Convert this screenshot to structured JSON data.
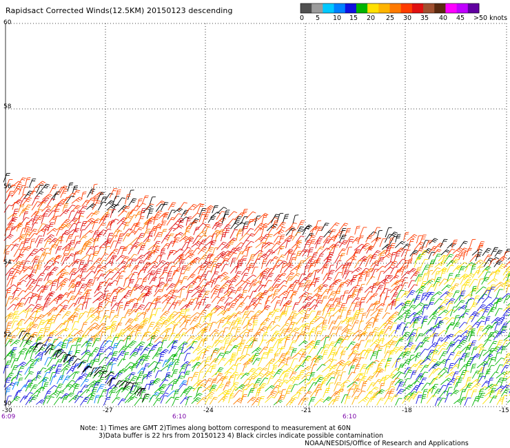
{
  "title": "Rapidsact Corrected Winds(12.5KM) 20150123 descending",
  "legend": {
    "bins": [
      {
        "color": "#505050"
      },
      {
        "color": "#9c9c9c"
      },
      {
        "color": "#00c8ff"
      },
      {
        "color": "#0080ff"
      },
      {
        "color": "#1010e0"
      },
      {
        "color": "#00b400"
      },
      {
        "color": "#ffe000"
      },
      {
        "color": "#ffb400"
      },
      {
        "color": "#ff7a00"
      },
      {
        "color": "#ff3c00"
      },
      {
        "color": "#e01010"
      },
      {
        "color": "#a05030"
      },
      {
        "color": "#5a2a10"
      },
      {
        "color": "#ff00ff"
      },
      {
        "color": "#c000ff"
      },
      {
        "color": "#6000a0"
      }
    ],
    "ticks": [
      "0",
      "5",
      "10",
      "15",
      "20",
      "25",
      "30",
      "35",
      "40",
      "45",
      ">50 knots"
    ]
  },
  "axes": {
    "lat_labels": [
      "60",
      "58",
      "56",
      "54",
      "52",
      "50"
    ],
    "lon_labels": [
      "-30",
      "-27",
      "-24",
      "-21",
      "-18",
      "-15"
    ],
    "time_labels": [
      "6:09",
      "6:10",
      "6:10"
    ],
    "lat_range": [
      50,
      60
    ],
    "lon_range": [
      -30,
      -15
    ],
    "grid": true
  },
  "notes": {
    "line1": "Note: 1) Times are GMT 2)Times along bottom correspond to measurement at 60N",
    "line2": "3)Data buffer is 22 hrs from 20150123 4) Black circles indicate possible contamination",
    "credit": "NOAA/NESDIS/Office of Research and Applications"
  }
}
